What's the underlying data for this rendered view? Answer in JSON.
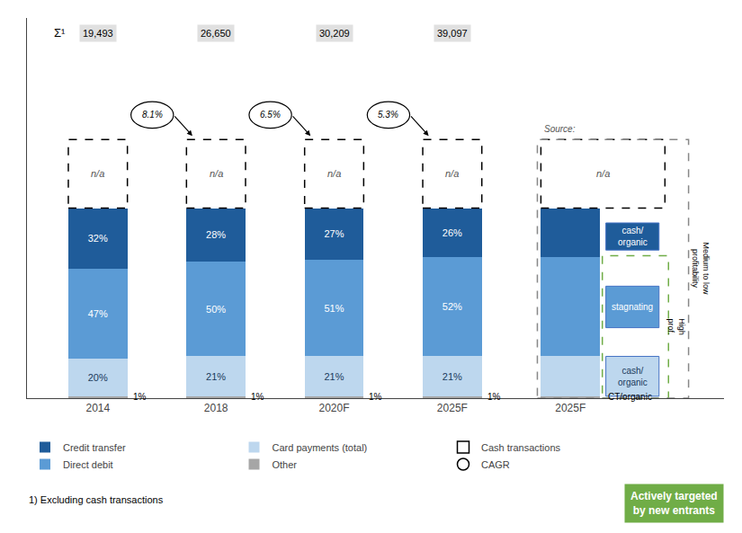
{
  "chart_data": {
    "type": "bar",
    "stacked": true,
    "data_labels": true,
    "tick_labels": "x",
    "grid": false,
    "legend": "bottom",
    "categories": [
      "2014",
      "2018",
      "2020F",
      "2025F",
      "2025F"
    ],
    "ylim": [
      0,
      200
    ],
    "yticks": [],
    "series": [
      {
        "name": "Other",
        "color": "#a6a6a6",
        "values": [
          1,
          1,
          1,
          1,
          1
        ],
        "value_labels": [
          "1%",
          "1%",
          "1%",
          "1%",
          null
        ]
      },
      {
        "name": "Card payments (total)",
        "color": "#bdd7ee",
        "values": [
          20,
          21,
          21,
          21,
          21
        ],
        "value_labels": [
          "20%",
          "21%",
          "21%",
          "21%",
          null
        ]
      },
      {
        "name": "Direct debit",
        "color": "#5b9bd5",
        "values": [
          47,
          50,
          51,
          52,
          52
        ],
        "value_labels": [
          "47%",
          "50%",
          "51%",
          "52%",
          null
        ]
      },
      {
        "name": "Credit transfer",
        "color": "#1f5c9a",
        "values": [
          32,
          28,
          27,
          26,
          26
        ],
        "value_labels": [
          "32%",
          "28%",
          "27%",
          "26%",
          null
        ]
      }
    ],
    "cash": {
      "name": "Cash transactions",
      "label": "n/a"
    },
    "cagr": {
      "name": "CAGR",
      "values": [
        8.1,
        6.5,
        5.3
      ],
      "value_labels": [
        "8.1%",
        "6.5%",
        "5.3%"
      ]
    },
    "totals": {
      "label": "Σ¹",
      "values": [
        19493,
        26650,
        30209,
        39097
      ],
      "value_labels": [
        "19,493",
        "26,650",
        "30,209",
        "39,097"
      ]
    },
    "panel_notes": [
      {
        "series": "Other",
        "text": "CT/organic"
      },
      {
        "series": "Card payments (total)",
        "text": "cash/\norganic"
      },
      {
        "series": "Direct debit",
        "text": "stagnating"
      },
      {
        "series": "Credit transfer",
        "text": "cash/\norganic"
      }
    ],
    "profitability_notes": {
      "medium_low": "Medium to low\nprofitability",
      "high": "High\nprof."
    },
    "source": "Source:",
    "footnote": "1) Excluding cash transactions",
    "callout": "Actively targeted\nby new entrants"
  }
}
